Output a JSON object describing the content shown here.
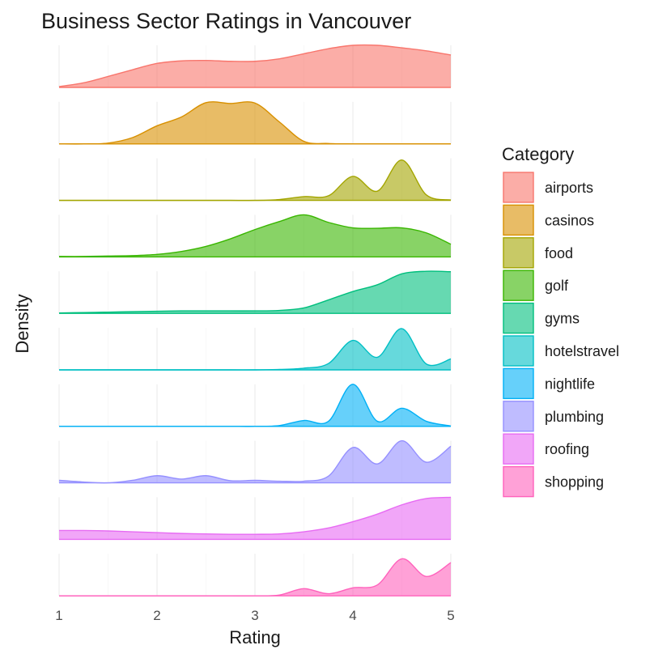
{
  "chart_data": {
    "type": "area",
    "subtype": "faceted density ridges",
    "title": "Business Sector Ratings in Vancouver",
    "xlabel": "Rating",
    "ylabel": "Density",
    "xlim": [
      1,
      5
    ],
    "x_ticks": [
      1,
      2,
      3,
      4,
      5
    ],
    "grid": true,
    "legend": {
      "title": "Category",
      "position": "right"
    },
    "x": [
      1.0,
      1.25,
      1.5,
      1.75,
      2.0,
      2.25,
      2.5,
      2.75,
      3.0,
      3.25,
      3.5,
      3.75,
      4.0,
      4.25,
      4.5,
      4.75,
      5.0
    ],
    "series": [
      {
        "name": "airports",
        "color": "#F8766D",
        "values": [
          0.02,
          0.11,
          0.26,
          0.42,
          0.57,
          0.63,
          0.64,
          0.62,
          0.62,
          0.68,
          0.8,
          0.92,
          1.0,
          1.0,
          0.94,
          0.87,
          0.77
        ]
      },
      {
        "name": "casinos",
        "color": "#D89000",
        "values": [
          0.0,
          0.0,
          0.02,
          0.15,
          0.43,
          0.64,
          0.98,
          0.96,
          0.97,
          0.52,
          0.06,
          0.01,
          0.0,
          0.0,
          0.0,
          0.0,
          0.0
        ]
      },
      {
        "name": "food",
        "color": "#A3A500",
        "values": [
          0.0,
          0.0,
          0.0,
          0.0,
          0.0,
          0.0,
          0.0,
          0.0,
          0.0,
          0.02,
          0.09,
          0.11,
          0.57,
          0.22,
          0.96,
          0.13,
          0.01
        ]
      },
      {
        "name": "golf",
        "color": "#39B600",
        "values": [
          0.01,
          0.01,
          0.02,
          0.03,
          0.06,
          0.13,
          0.25,
          0.43,
          0.65,
          0.84,
          1.0,
          0.82,
          0.69,
          0.68,
          0.69,
          0.57,
          0.3
        ]
      },
      {
        "name": "gyms",
        "color": "#00BF7D",
        "values": [
          0.01,
          0.02,
          0.03,
          0.04,
          0.05,
          0.06,
          0.06,
          0.06,
          0.06,
          0.07,
          0.13,
          0.32,
          0.52,
          0.68,
          0.94,
          1.0,
          0.99
        ]
      },
      {
        "name": "hotelstravel",
        "color": "#00BFC4",
        "values": [
          0.0,
          0.0,
          0.0,
          0.0,
          0.0,
          0.0,
          0.0,
          0.0,
          0.0,
          0.01,
          0.04,
          0.15,
          0.7,
          0.3,
          0.98,
          0.14,
          0.26
        ]
      },
      {
        "name": "nightlife",
        "color": "#00B0F6",
        "values": [
          0.0,
          0.0,
          0.0,
          0.0,
          0.0,
          0.0,
          0.0,
          0.0,
          0.0,
          0.02,
          0.14,
          0.12,
          1.0,
          0.12,
          0.43,
          0.12,
          0.01
        ]
      },
      {
        "name": "plumbing",
        "color": "#9590FF",
        "values": [
          0.06,
          0.02,
          0.0,
          0.06,
          0.17,
          0.09,
          0.17,
          0.05,
          0.06,
          0.04,
          0.04,
          0.16,
          0.84,
          0.45,
          1.0,
          0.49,
          0.87
        ]
      },
      {
        "name": "roofing",
        "color": "#E76BF3",
        "values": [
          0.21,
          0.21,
          0.2,
          0.18,
          0.16,
          0.14,
          0.13,
          0.12,
          0.12,
          0.13,
          0.18,
          0.27,
          0.42,
          0.6,
          0.82,
          0.97,
          1.0
        ]
      },
      {
        "name": "shopping",
        "color": "#FF62BC",
        "values": [
          0.0,
          0.0,
          0.0,
          0.0,
          0.0,
          0.0,
          0.0,
          0.0,
          0.0,
          0.02,
          0.17,
          0.05,
          0.19,
          0.26,
          0.88,
          0.46,
          0.79
        ]
      }
    ]
  }
}
